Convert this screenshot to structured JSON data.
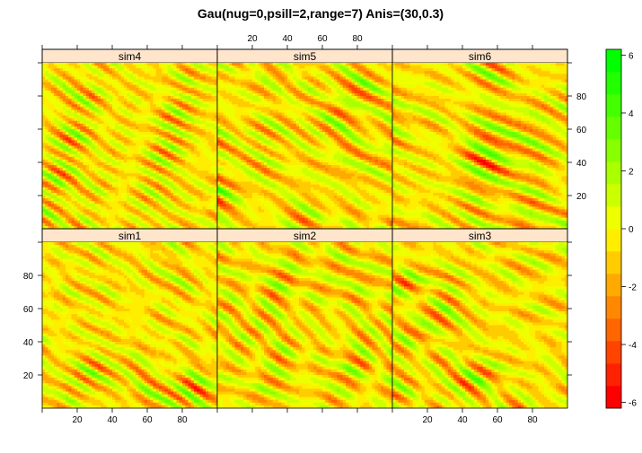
{
  "chart_data": {
    "type": "heatmap",
    "title": "Gau(nug=0,psill=2,range=7) Anis=(30,0.3)",
    "xlabel": "",
    "ylabel": "",
    "xlim": [
      0,
      100
    ],
    "ylim": [
      0,
      100
    ],
    "x_ticks": [
      20,
      40,
      60,
      80
    ],
    "y_ticks": [
      20,
      40,
      60,
      80
    ],
    "panels": [
      {
        "name": "sim4",
        "row": 1,
        "col": 1
      },
      {
        "name": "sim5",
        "row": 1,
        "col": 2
      },
      {
        "name": "sim6",
        "row": 1,
        "col": 3
      },
      {
        "name": "sim1",
        "row": 2,
        "col": 1
      },
      {
        "name": "sim2",
        "row": 2,
        "col": 2
      },
      {
        "name": "sim3",
        "row": 2,
        "col": 3
      }
    ],
    "colorbar": {
      "ticks": [
        6,
        4,
        2,
        0,
        -2,
        -4,
        -6
      ],
      "range": [
        -6.2,
        6.2
      ],
      "colors": [
        "#ff0000",
        "#ff2200",
        "#ff4400",
        "#ff6600",
        "#ff8800",
        "#ffaa00",
        "#ffcc00",
        "#ffee00",
        "#eeff00",
        "#ccff00",
        "#aaff00",
        "#88ff00",
        "#66ff00",
        "#44ff00",
        "#22ff00",
        "#00ff00"
      ]
    },
    "field_model": {
      "model": "Gau",
      "nugget": 0,
      "psill": 2,
      "range": 7,
      "anis_angle": 30,
      "anis_ratio": 0.3
    }
  }
}
